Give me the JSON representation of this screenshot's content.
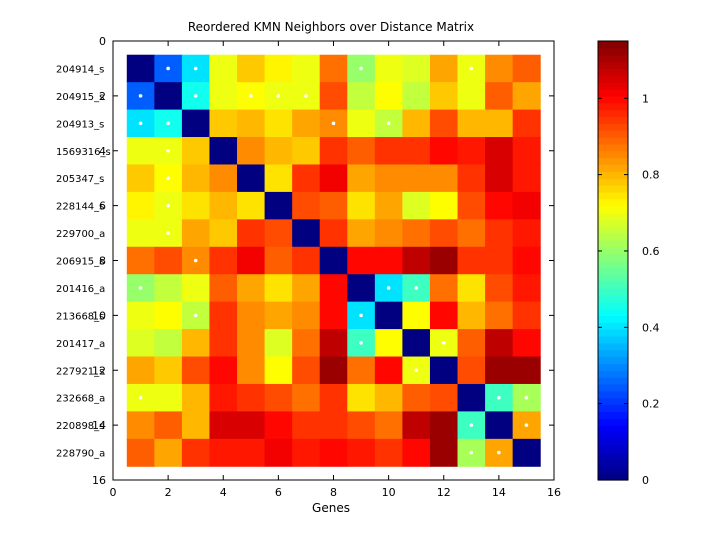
{
  "chart_data": {
    "type": "heatmap",
    "title": "Reordered KMN Neighbors over Distance Matrix",
    "xlabel": "Genes",
    "ylabel": "",
    "xlim": [
      0,
      16
    ],
    "ylim": [
      0,
      16
    ],
    "x_ticks": [
      "0",
      "2",
      "4",
      "6",
      "8",
      "10",
      "12",
      "14",
      "16"
    ],
    "y_ticks": [
      "0",
      "2",
      "4",
      "6",
      "8",
      "10",
      "12",
      "14",
      "16"
    ],
    "row_labels": [
      "204914_s",
      "204915_s",
      "204913_s",
      "1569316_s",
      "205347_s",
      "228144_s",
      "229700_a",
      "206915_s",
      "201416_a",
      "213668_s",
      "201417_a",
      "227921_s",
      "232668_a",
      "220898_s",
      "228790_a"
    ],
    "colorbar": {
      "range": [
        0,
        1.15
      ],
      "ticks": [
        "0",
        "0.2",
        "0.4",
        "0.6",
        "0.8",
        "1"
      ],
      "colormap": "jet"
    },
    "marker_color": "#ffffff",
    "values": [
      [
        0.0,
        0.25,
        0.4,
        0.7,
        0.78,
        0.73,
        0.7,
        0.88,
        0.6,
        0.7,
        0.68,
        0.82,
        0.7,
        0.85,
        0.9
      ],
      [
        0.25,
        0.0,
        0.45,
        0.7,
        0.72,
        0.7,
        0.7,
        0.92,
        0.65,
        0.72,
        0.65,
        0.78,
        0.7,
        0.9,
        0.82
      ],
      [
        0.4,
        0.45,
        0.0,
        0.78,
        0.8,
        0.75,
        0.82,
        0.85,
        0.7,
        0.65,
        0.8,
        0.92,
        0.8,
        0.8,
        0.95
      ],
      [
        0.7,
        0.7,
        0.78,
        0.0,
        0.85,
        0.8,
        0.78,
        0.95,
        0.9,
        0.95,
        0.95,
        1.0,
        0.98,
        1.05,
        0.98
      ],
      [
        0.78,
        0.72,
        0.8,
        0.85,
        0.0,
        0.75,
        0.95,
        1.02,
        0.82,
        0.85,
        0.85,
        0.85,
        0.95,
        1.05,
        0.98
      ],
      [
        0.73,
        0.7,
        0.75,
        0.8,
        0.75,
        0.0,
        0.92,
        0.9,
        0.75,
        0.82,
        0.68,
        0.72,
        0.92,
        1.0,
        1.02
      ],
      [
        0.7,
        0.7,
        0.82,
        0.78,
        0.95,
        0.92,
        0.0,
        0.95,
        0.82,
        0.85,
        0.88,
        0.92,
        0.88,
        0.95,
        0.98
      ],
      [
        0.88,
        0.92,
        0.85,
        0.95,
        1.02,
        0.9,
        0.95,
        0.0,
        1.0,
        1.0,
        1.08,
        1.12,
        0.95,
        0.95,
        1.0
      ],
      [
        0.6,
        0.65,
        0.7,
        0.9,
        0.82,
        0.75,
        0.82,
        1.0,
        0.0,
        0.4,
        0.5,
        0.88,
        0.75,
        0.92,
        0.98
      ],
      [
        0.7,
        0.72,
        0.65,
        0.95,
        0.85,
        0.82,
        0.85,
        1.0,
        0.4,
        0.0,
        0.72,
        1.0,
        0.8,
        0.88,
        0.95
      ],
      [
        0.68,
        0.65,
        0.8,
        0.95,
        0.85,
        0.68,
        0.88,
        1.08,
        0.5,
        0.72,
        0.0,
        0.7,
        0.9,
        1.08,
        1.0
      ],
      [
        0.82,
        0.78,
        0.92,
        1.0,
        0.85,
        0.72,
        0.92,
        1.12,
        0.88,
        1.0,
        0.7,
        0.0,
        0.92,
        1.12,
        1.12
      ],
      [
        0.7,
        0.7,
        0.8,
        0.98,
        0.95,
        0.92,
        0.88,
        0.95,
        0.75,
        0.8,
        0.9,
        0.92,
        0.0,
        0.5,
        0.62
      ],
      [
        0.85,
        0.9,
        0.8,
        1.05,
        1.05,
        1.0,
        0.95,
        0.95,
        0.92,
        0.88,
        1.08,
        1.12,
        0.5,
        0.0,
        0.82
      ],
      [
        0.9,
        0.82,
        0.95,
        0.98,
        0.98,
        1.02,
        0.98,
        1.0,
        0.98,
        0.95,
        1.0,
        1.12,
        0.62,
        0.82,
        0.0
      ]
    ],
    "neighbor_markers": [
      [
        1,
        2
      ],
      [
        1,
        3
      ],
      [
        1,
        9
      ],
      [
        1,
        13
      ],
      [
        2,
        1
      ],
      [
        2,
        3
      ],
      [
        2,
        5
      ],
      [
        2,
        6
      ],
      [
        2,
        7
      ],
      [
        3,
        1
      ],
      [
        3,
        2
      ],
      [
        3,
        8
      ],
      [
        3,
        10
      ],
      [
        4,
        2
      ],
      [
        5,
        2
      ],
      [
        6,
        2
      ],
      [
        7,
        2
      ],
      [
        8,
        3
      ],
      [
        9,
        1
      ],
      [
        9,
        10
      ],
      [
        9,
        11
      ],
      [
        10,
        3
      ],
      [
        10,
        9
      ],
      [
        11,
        9
      ],
      [
        11,
        12
      ],
      [
        12,
        11
      ],
      [
        13,
        1
      ],
      [
        13,
        14
      ],
      [
        13,
        15
      ],
      [
        14,
        13
      ],
      [
        14,
        15
      ],
      [
        15,
        13
      ],
      [
        15,
        14
      ]
    ]
  }
}
